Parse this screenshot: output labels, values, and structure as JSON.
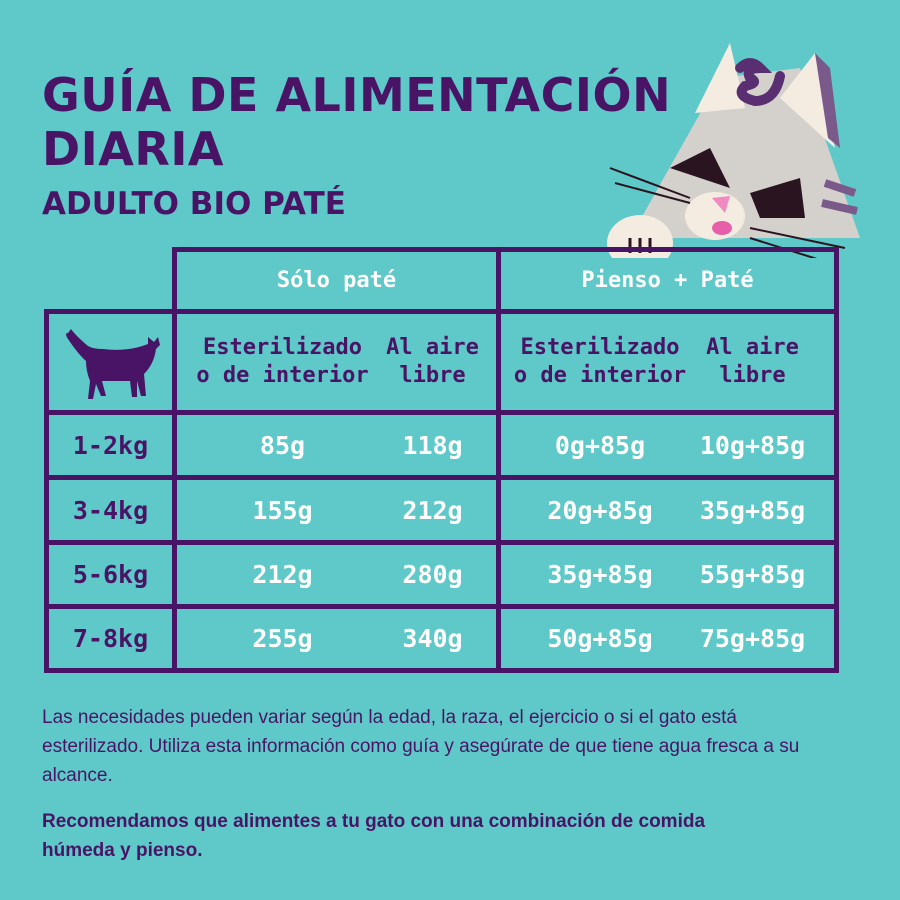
{
  "title": "GUÍA DE ALIMENTACIÓN DIARIA",
  "title_lines": [
    "GUÍA DE ALIMENTACIÓN",
    "DIARIA"
  ],
  "subtitle": "ADULTO BIO PATÉ",
  "colors": {
    "background": "#5ec9c8",
    "primary": "#4a1466",
    "value_text": "#ffffff"
  },
  "table": {
    "groups": [
      "Sólo paté",
      "Pienso + Paté"
    ],
    "corner_icon": "cat-silhouette-icon",
    "columns": [
      "Esterilizado o de interior",
      "Al aire libre",
      "Esterilizado o de interior",
      "Al aire libre"
    ],
    "column_lines": [
      [
        "Esterilizado",
        "o de interior"
      ],
      [
        "Al aire",
        "libre"
      ],
      [
        "Esterilizado",
        "o de interior"
      ],
      [
        "Al aire",
        "libre"
      ]
    ],
    "rows": [
      {
        "weight": "1-2kg",
        "values": [
          "85g",
          "118g",
          "0g+85g",
          "10g+85g"
        ]
      },
      {
        "weight": "3-4kg",
        "values": [
          "155g",
          "212g",
          "20g+85g",
          "35g+85g"
        ]
      },
      {
        "weight": "5-6kg",
        "values": [
          "212g",
          "280g",
          "35g+85g",
          "55g+85g"
        ]
      },
      {
        "weight": "7-8kg",
        "values": [
          "255g",
          "340g",
          "50g+85g",
          "75g+85g"
        ]
      }
    ]
  },
  "note": "Las necesidades pueden variar según la edad, la raza, el ejercicio o si el gato está esterilizado. Utiliza esta información como guía y asegúrate de que tiene agua fresca a su alcance.",
  "recommendation": "Recomendamos que alimentes a tu gato con una combinación de comida húmeda y pienso.",
  "illustration": "cartoon-cat-peeking-illustration"
}
